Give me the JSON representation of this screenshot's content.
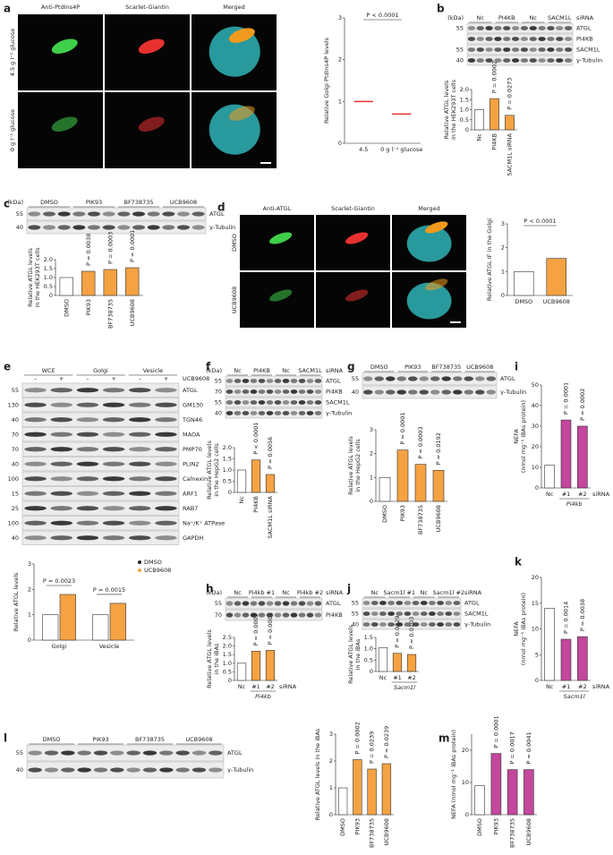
{
  "figure": {
    "panels": [
      "a",
      "b",
      "c",
      "d",
      "e",
      "f",
      "g",
      "h",
      "i",
      "j",
      "k",
      "l",
      "m"
    ],
    "images": [
      {
        "channels": [
          "Anti-PtdIns4P",
          "Scarlet-Giantin",
          "Merged"
        ],
        "channel_colors": [
          "#39b54a",
          "#e8312f",
          "#f7941d"
        ],
        "rows": [
          "4.5 g l⁻¹ glucose",
          "0 g l⁻¹ glucose"
        ]
      },
      {
        "channels": [
          "Anti-ATGL",
          "Scarlet-Giantin",
          "Merged"
        ],
        "channel_colors": [
          "#39b54a",
          "#e8312f",
          "#f7941d"
        ],
        "rows": [
          "DMSO",
          "UCB9608"
        ]
      }
    ],
    "blots": [
      {
        "kda_unit": "(kDa)",
        "headers": [
          "Nc",
          "PI4KB",
          "Nc",
          "SACM1L"
        ],
        "suffix": "siRNA",
        "rows": [
          {
            "label": "ATGL",
            "kda": 55
          },
          {
            "label": "PI4KB"
          },
          {
            "label": "SACM1L",
            "kda": 55
          },
          {
            "label": "γ-Tubulin",
            "kda": 40
          }
        ]
      },
      {
        "kda_unit": "(kDa)",
        "headers": [
          "DMSO",
          "PIK93",
          "BF738735",
          "UCB9608"
        ],
        "rows": [
          {
            "label": "ATGL",
            "kda": 55
          },
          {
            "label": "γ-Tubulin",
            "kda": 40
          }
        ]
      },
      {
        "headers": [
          "WCE",
          "Golgi",
          "Vesicle"
        ],
        "subheaders": [
          "–",
          "+",
          "–",
          "+",
          "–",
          "+"
        ],
        "suffix": "UCB9608",
        "rows": [
          {
            "label": "ATGL",
            "kda": 55
          },
          {
            "label": "GM130",
            "kda": 130
          },
          {
            "label": "TGN46",
            "kda": 40
          },
          {
            "label": "MAOA",
            "kda": 70
          },
          {
            "label": "PMP70",
            "kda": 70
          },
          {
            "label": "PLIN2",
            "kda": 40
          },
          {
            "label": "Calnexin",
            "kda": 100
          },
          {
            "label": "ARF1",
            "kda": 15
          },
          {
            "label": "RAB7",
            "kda": 25
          },
          {
            "label": "Na⁺/K⁺ ATPase",
            "kda": 100
          },
          {
            "label": "GAPDH",
            "kda": 40
          }
        ]
      },
      {
        "kda_unit": "(kDa)",
        "headers": [
          "Nc",
          "PI4KB",
          "Nc",
          "SACM1L"
        ],
        "suffix": "siRNA",
        "rows": [
          {
            "label": "ATGL",
            "kda": 55
          },
          {
            "label": "PI4KB",
            "kda": 70
          },
          {
            "label": "SACM1L",
            "kda": 55
          },
          {
            "label": "γ-Tubulin",
            "kda": 40
          }
        ]
      },
      {
        "headers": [
          "DMSO",
          "PIK93",
          "BF738735",
          "UCB9608"
        ],
        "rows": [
          {
            "label": "ATGL",
            "kda": 55
          },
          {
            "label": "γ-Tubulin",
            "kda": 40
          }
        ]
      },
      {
        "kda_unit": "(kDa)",
        "headers": [
          "Nc",
          "Pi4kb #1",
          "Nc",
          "Pi4kb #2"
        ],
        "suffix": "siRNA",
        "rows": [
          {
            "label": "ATGL",
            "kda": 55
          },
          {
            "label": "PI4KB",
            "kda": 70
          }
        ]
      },
      {
        "headers": [
          "Nc",
          "Sacm1l #1",
          "Nc",
          "Sacm1l #2"
        ],
        "suffix": "siRNA",
        "rows": [
          {
            "label": "ATGL",
            "kda": 55
          },
          {
            "label": "SACM1L",
            "kda": 55
          },
          {
            "label": "γ-Tubulin",
            "kda": 40
          }
        ]
      },
      {
        "headers": [
          "DMSO",
          "PIK93",
          "BF738735",
          "UCB9608"
        ],
        "rows": [
          {
            "label": "ATGL",
            "kda": 55
          },
          {
            "label": "γ-Tubulin",
            "kda": 40
          }
        ]
      }
    ]
  },
  "chart_data": [
    {
      "type": "dot",
      "ylabel": [
        "Relative Golgi PtdIns4P levels"
      ],
      "categories": [
        "4.5",
        "0 g l⁻¹ glucose"
      ],
      "values": [
        1.0,
        0.7
      ],
      "color": "#e8312f",
      "ylim": [
        0,
        3
      ],
      "yticks": [
        0,
        1,
        2,
        3
      ],
      "p_labels": [
        "P < 0.0001"
      ],
      "p_style": "bracket"
    },
    {
      "type": "bar",
      "ylabel": [
        "Relative ATGL levels",
        "in the HEK293T cells"
      ],
      "categories": [
        "Nc",
        "PI4KB",
        "SACM1L siRNA"
      ],
      "values": [
        1.0,
        1.55,
        0.72
      ],
      "colors": [
        "#ffffff",
        "#f5a243",
        "#f5a243"
      ],
      "ylim": [
        0,
        2
      ],
      "yticks": [
        0,
        0.5,
        {
          "value": 1,
          "label": "1.0"
        },
        1.5,
        {
          "value": 2,
          "label": "2.0"
        }
      ],
      "p_labels": [
        null,
        "P = 0.0002",
        "P = 0.0273"
      ],
      "p_style": "rotated",
      "rotate_labels": true
    },
    {
      "type": "bar",
      "ylabel": [
        "Relative ATGL levels",
        "in the HEK293T cells"
      ],
      "categories": [
        "DMSO",
        "PIK93",
        "BF738735",
        "UCB9608"
      ],
      "values": [
        1.0,
        1.35,
        1.45,
        1.55
      ],
      "colors": [
        "#ffffff",
        "#f5a243",
        "#f5a243",
        "#f5a243"
      ],
      "ylim": [
        0,
        2
      ],
      "yticks": [
        0,
        0.5,
        {
          "value": 1,
          "label": "1.0"
        },
        1.5,
        {
          "value": 2,
          "label": "2.0"
        }
      ],
      "p_labels": [
        null,
        "P = 0.0038",
        "P = 0.0003",
        "P = 0.0001"
      ],
      "p_style": "rotated",
      "rotate_labels": true
    },
    {
      "type": "bar",
      "ylabel": [
        "Relative ATGL IF in the Golgi"
      ],
      "categories": [
        "DMSO",
        "UCB9608"
      ],
      "values": [
        1.0,
        1.55
      ],
      "colors": [
        "#ffffff",
        "#f5a243"
      ],
      "ylim": [
        0,
        3
      ],
      "yticks": [
        0,
        1,
        2,
        3
      ],
      "p_labels": [
        "P < 0.0001"
      ],
      "p_style": "bracket"
    },
    {
      "type": "grouped",
      "ylabel": [
        "Relative ATGL levels"
      ],
      "categories": [
        "Golgi",
        "Vesicle"
      ],
      "series": [
        {
          "name": "DMSO",
          "color": "#ffffff",
          "values": [
            1.0,
            1.0
          ]
        },
        {
          "name": "UCB9608",
          "color": "#f5a243",
          "values": [
            1.8,
            1.45
          ]
        }
      ],
      "ylim": [
        0,
        3
      ],
      "yticks": [
        0,
        1,
        2,
        3
      ],
      "p_labels": [
        "P = 0.0023",
        "P = 0.0015"
      ],
      "p_style": "bracket"
    },
    {
      "type": "bar",
      "ylabel": [
        "Relative ATGL levels",
        "in the HepG2 cells"
      ],
      "categories": [
        "Nc",
        "PI4KB",
        "SACM1L siRNA"
      ],
      "values": [
        1.0,
        1.45,
        0.8
      ],
      "colors": [
        "#ffffff",
        "#f5a243",
        "#f5a243"
      ],
      "ylim": [
        0,
        2
      ],
      "yticks": [
        0,
        0.5,
        {
          "value": 1,
          "label": "1.0"
        },
        1.5,
        {
          "value": 2,
          "label": "2.0"
        }
      ],
      "p_labels": [
        null,
        "P < 0.0001",
        "P = 0.0056"
      ],
      "p_style": "rotated",
      "rotate_labels": true
    },
    {
      "type": "bar",
      "ylabel": [
        "Relative ATGL levels",
        "in the HepG2 cells"
      ],
      "categories": [
        "DMSO",
        "PIK93",
        "BF738735",
        "UCB9608"
      ],
      "values": [
        1.0,
        2.15,
        1.55,
        1.3
      ],
      "colors": [
        "#ffffff",
        "#f5a243",
        "#f5a243",
        "#f5a243"
      ],
      "ylim": [
        0,
        3
      ],
      "yticks": [
        0,
        1,
        2,
        3
      ],
      "p_labels": [
        null,
        "P = 0.0001",
        "P = 0.0003",
        "P = 0.0192"
      ],
      "p_style": "rotated",
      "rotate_labels": true
    },
    {
      "type": "bar",
      "ylabel": [
        "Relative ATGL levels",
        "in the iBAs"
      ],
      "categories": [
        "Nc",
        "#1",
        "#2"
      ],
      "group": "Pi4kb",
      "suffix": "siRNA",
      "values": [
        1.0,
        1.7,
        1.75
      ],
      "colors": [
        "#ffffff",
        "#f5a243",
        "#f5a243"
      ],
      "ylim": [
        0,
        2.5
      ],
      "yticks": [
        0,
        0.5,
        {
          "value": 1,
          "label": "1.0"
        },
        1.5,
        {
          "value": 2,
          "label": "2.0"
        },
        2.5
      ],
      "p_labels": [
        null,
        "P = 0.0002",
        "P = 0.0001"
      ],
      "p_style": "rotated"
    },
    {
      "type": "bar",
      "ylabel": [
        "NEFA",
        "(nmol mg⁻¹ iBAs protein)"
      ],
      "categories": [
        "Nc",
        "#1",
        "#2"
      ],
      "group": "Pi4kb",
      "suffix": "siRNA",
      "values": [
        11,
        33,
        30
      ],
      "colors": [
        "#ffffff",
        "#c3479c",
        "#c3479c"
      ],
      "ylim": [
        0,
        50
      ],
      "yticks": [
        0,
        10,
        20,
        30,
        40,
        50
      ],
      "p_labels": [
        null,
        "P = 0.0001",
        "P = 0.0002"
      ],
      "p_style": "rotated"
    },
    {
      "type": "bar",
      "ylabel": [
        "Relative ATGL levels",
        "in the iBAs"
      ],
      "categories": [
        "Nc",
        "#1",
        "#2"
      ],
      "group": "Sacm1l",
      "values": [
        1.05,
        0.8,
        0.75
      ],
      "colors": [
        "#ffffff",
        "#f5a243",
        "#f5a243"
      ],
      "ylim": [
        0,
        1.5
      ],
      "yticks": [
        0,
        0.5,
        {
          "value": 1,
          "label": "1.0"
        },
        1.5
      ],
      "p_labels": [
        null,
        "P = 0.0229",
        "P = 0.0103"
      ],
      "p_style": "rotated"
    },
    {
      "type": "bar",
      "ylabel": [
        "NEFA",
        "(nmol mg⁻¹ iBAs protein)"
      ],
      "categories": [
        "Nc",
        "#1",
        "#2"
      ],
      "group": "Sacm1l",
      "suffix": "siRNA",
      "values": [
        14,
        8,
        8.5
      ],
      "colors": [
        "#ffffff",
        "#c3479c",
        "#c3479c"
      ],
      "ylim": [
        0,
        20
      ],
      "yticks": [
        0,
        5,
        10,
        15,
        20
      ],
      "p_labels": [
        null,
        "P = 0.0014",
        "P = 0.0038"
      ],
      "p_style": "rotated"
    },
    {
      "type": "bar",
      "ylabel": [
        "Relative ATGL levels in the iBAs"
      ],
      "categories": [
        "DMSO",
        "PIK93",
        "BF738735",
        "UCB9608"
      ],
      "values": [
        1.0,
        2.05,
        1.7,
        1.9
      ],
      "colors": [
        "#ffffff",
        "#f5a243",
        "#f5a243",
        "#f5a243"
      ],
      "ylim": [
        0,
        3
      ],
      "yticks": [
        0,
        1,
        2,
        3
      ],
      "p_labels": [
        null,
        "P = 0.0002",
        "P = 0.0239",
        "P = 0.0239"
      ],
      "p_style": "rotated",
      "rotate_labels": true
    },
    {
      "type": "bar",
      "ylabel": [
        "NEFA (nmol mg⁻¹ iBAs protein)"
      ],
      "categories": [
        "DMSO",
        "PIK93",
        "BF738735",
        "UCB9608"
      ],
      "values": [
        9,
        19,
        14,
        14
      ],
      "colors": [
        "#ffffff",
        "#c3479c",
        "#c3479c",
        "#c3479c"
      ],
      "ylim": [
        0,
        25
      ],
      "yticks": [
        0,
        10,
        20
      ],
      "p_labels": [
        null,
        "P = 0.0001",
        "P = 0.0017",
        "P = 0.0041"
      ],
      "p_style": "rotated",
      "rotate_labels": true
    }
  ]
}
